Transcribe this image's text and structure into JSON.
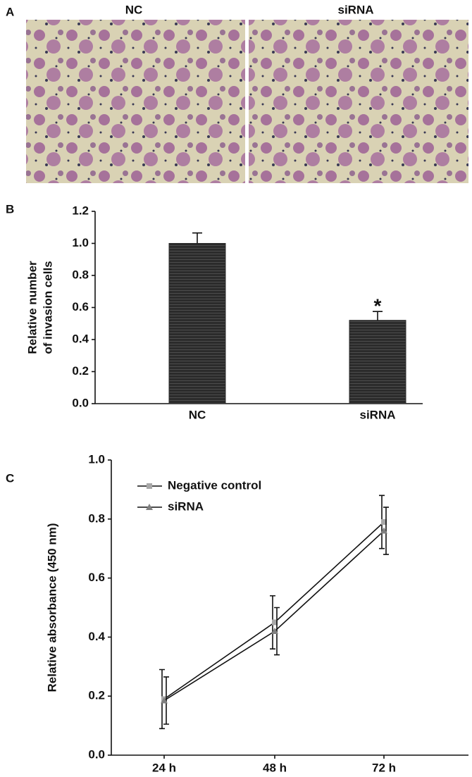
{
  "panel_labels": [
    "A",
    "B",
    "C"
  ],
  "images": {
    "titles": [
      "NC",
      "siRNA"
    ]
  },
  "chart_data": [
    {
      "type": "bar",
      "y_label": [
        "Relative number",
        "of invasion cells"
      ],
      "categories": [
        "NC",
        "siRNA"
      ],
      "values": [
        1.0,
        0.52
      ],
      "errors": [
        0.065,
        0.055
      ],
      "color": "#2b2b2b",
      "annotation": "*",
      "ylim": [
        0,
        1.2
      ],
      "yticks": [
        {
          "value": 0,
          "label": "0.0"
        },
        0.2,
        0.4,
        0.6,
        0.8,
        {
          "value": 1,
          "label": "1.0"
        },
        1.2
      ]
    },
    {
      "type": "line",
      "y_label": "Relative absorbance (450 nm)",
      "categories": [
        "24 h",
        "48 h",
        "72 h"
      ],
      "series": [
        {
          "name": "Negative control",
          "color": "#a8a8a8",
          "marker": "square",
          "values": [
            0.19,
            0.45,
            0.79
          ],
          "errors": [
            0.1,
            0.09,
            0.09
          ]
        },
        {
          "name": "siRNA",
          "color": "#808080",
          "marker": "triangle",
          "values": [
            0.185,
            0.42,
            0.76
          ],
          "errors": [
            0.08,
            0.08,
            0.08
          ]
        }
      ],
      "ylim": [
        0,
        1
      ],
      "yticks": [
        {
          "value": 0,
          "label": "0.0"
        },
        0.2,
        0.4,
        0.6,
        0.8,
        {
          "value": 1,
          "label": "1.0"
        }
      ]
    }
  ]
}
